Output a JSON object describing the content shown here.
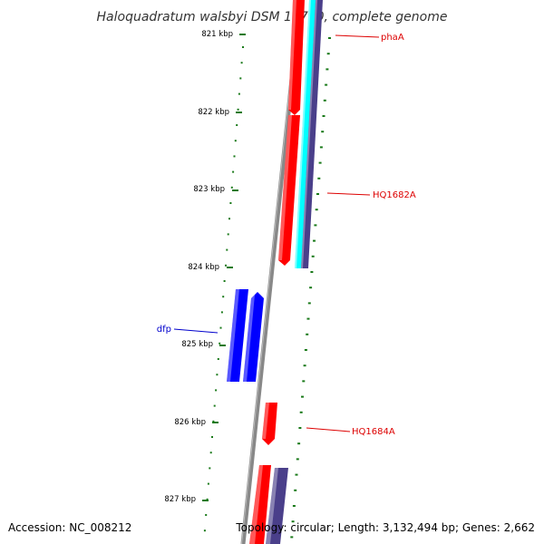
{
  "title": "Haloquadratum walsbyi DSM 16790, complete genome",
  "footer": {
    "accession": "Accession: NC_008212",
    "summary": "Topology: circular; Length: 3,132,494 bp; Genes: 2,662"
  },
  "colors": {
    "backbone": "#888888",
    "tick": "#1a7a1a",
    "forward_gene": "#ff0000",
    "reverse_gene": "#0000ff",
    "cds": "#00ffff",
    "feature": "#4a3f8a",
    "label_red": "#dd0000",
    "label_blue": "#0000cc"
  },
  "tick_labels": [
    "821 kbp",
    "822 kbp",
    "823 kbp",
    "824 kbp",
    "825 kbp",
    "826 kbp",
    "827 kbp"
  ],
  "gene_labels": [
    {
      "name": "phaA",
      "color": "label_red"
    },
    {
      "name": "HQ1682A",
      "color": "label_red"
    },
    {
      "name": "dfp",
      "color": "label_blue"
    },
    {
      "name": "HQ1684A",
      "color": "label_red"
    }
  ]
}
